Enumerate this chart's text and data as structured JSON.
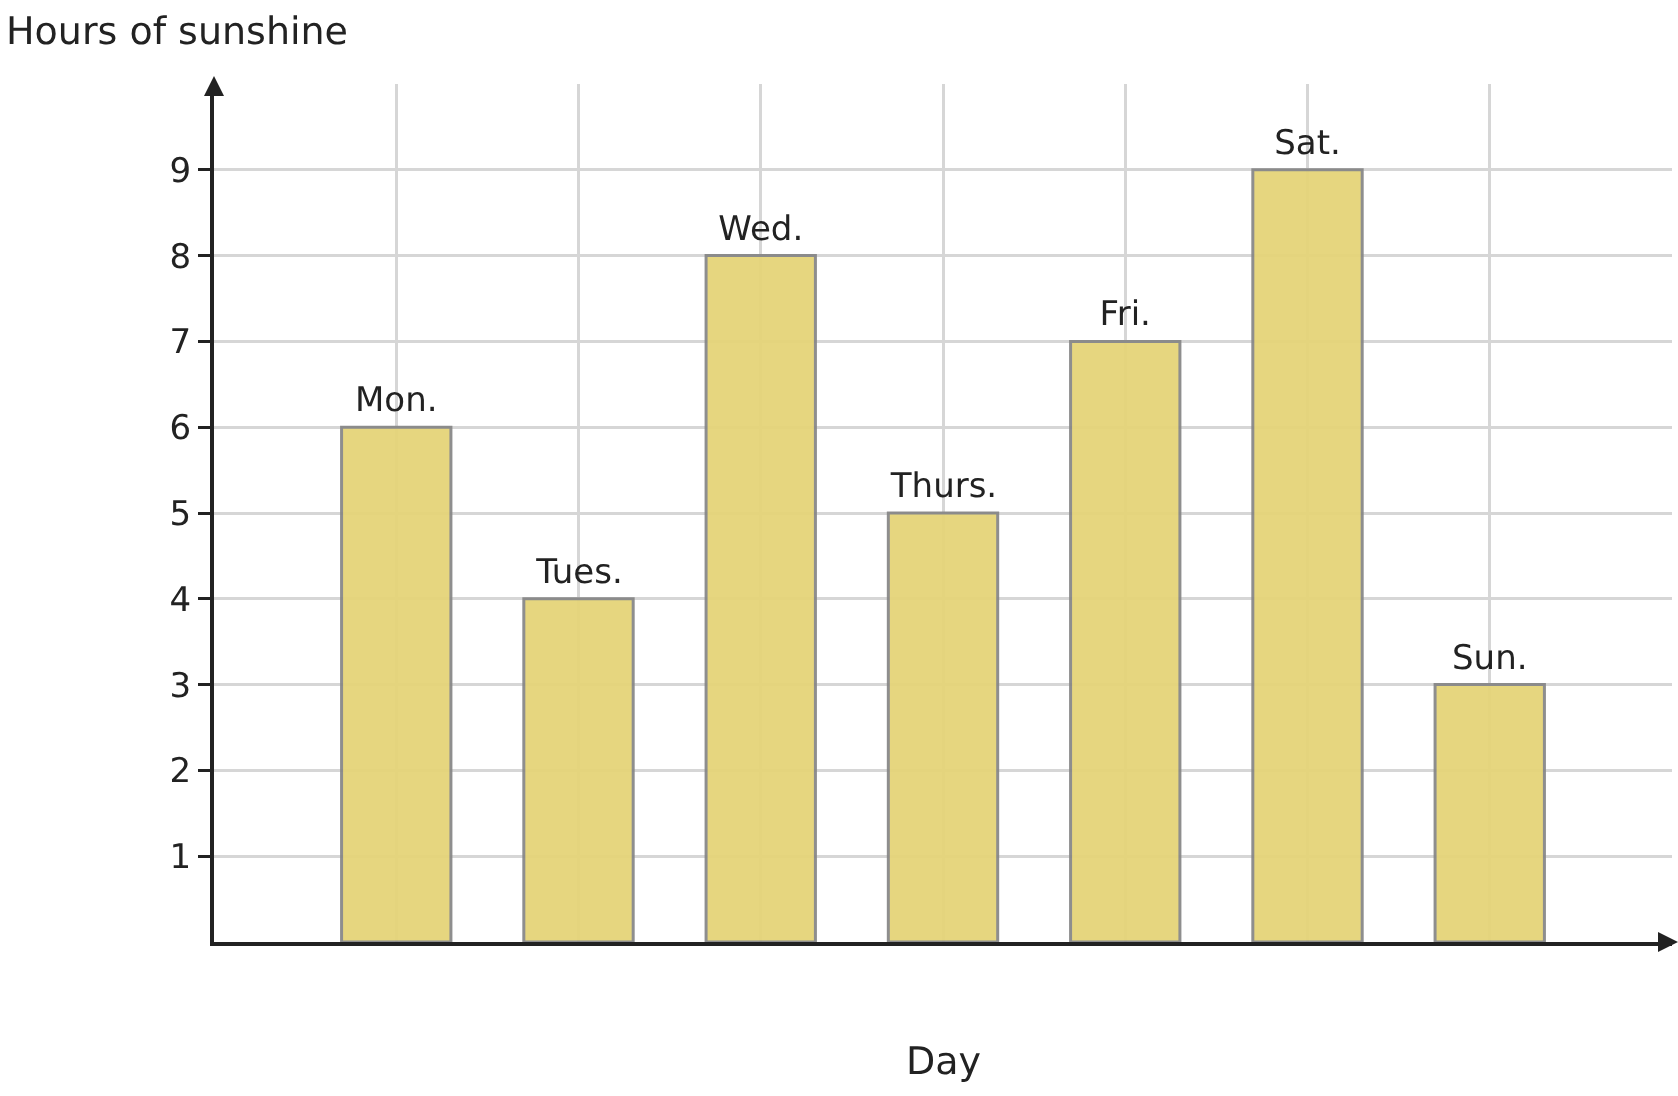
{
  "chart_data": {
    "type": "bar",
    "xlabel": "Day",
    "ylabel": "Hours of sunshine",
    "categories": [
      "Mon.",
      "Tues.",
      "Wed.",
      "Thurs.",
      "Fri.",
      "Sat.",
      "Sun."
    ],
    "values": [
      6,
      4,
      8,
      5,
      7,
      9,
      3
    ],
    "color": "#e5d479",
    "ylim": [
      0,
      10
    ],
    "yticks": [
      1,
      2,
      3,
      4,
      5,
      6,
      7,
      8,
      9
    ],
    "grid": true,
    "tick_labels": "y",
    "legend": false
  }
}
